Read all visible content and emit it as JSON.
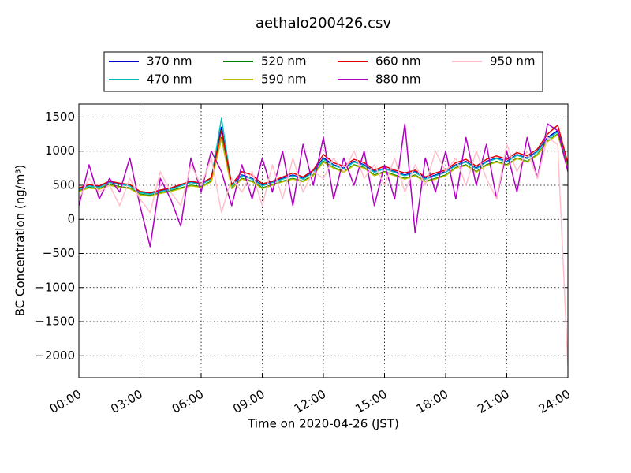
{
  "chart_data": {
    "type": "line",
    "title": "aethalo200426.csv",
    "xlabel": "Time on 2020-04-26 (JST)",
    "ylabel": "BC Concentration (ng/m³)",
    "x": [
      0,
      0.5,
      1,
      1.5,
      2,
      2.5,
      3,
      3.5,
      4,
      4.5,
      5,
      5.5,
      6,
      6.5,
      7,
      7.5,
      8,
      8.5,
      9,
      9.5,
      10,
      10.5,
      11,
      11.5,
      12,
      12.5,
      13,
      13.5,
      14,
      14.5,
      15,
      15.5,
      16,
      16.5,
      17,
      17.5,
      18,
      18.5,
      19,
      19.5,
      20,
      20.5,
      21,
      21.5,
      22,
      22.5,
      23,
      23.5,
      24
    ],
    "series": [
      {
        "name": "370 nm",
        "color": "#0000cc",
        "values": [
          450,
          500,
          480,
          550,
          520,
          500,
          400,
          380,
          420,
          450,
          500,
          550,
          520,
          600,
          1350,
          500,
          650,
          600,
          500,
          550,
          600,
          650,
          600,
          700,
          900,
          800,
          750,
          850,
          800,
          700,
          750,
          700,
          650,
          700,
          600,
          650,
          700,
          800,
          850,
          750,
          850,
          900,
          850,
          950,
          900,
          1000,
          1200,
          1300,
          800
        ]
      },
      {
        "name": "470 nm",
        "color": "#00bfbf",
        "values": [
          440,
          490,
          470,
          540,
          510,
          490,
          390,
          370,
          410,
          440,
          490,
          540,
          510,
          590,
          1480,
          490,
          640,
          590,
          490,
          540,
          590,
          640,
          590,
          690,
          880,
          790,
          740,
          840,
          790,
          690,
          740,
          690,
          640,
          690,
          590,
          640,
          690,
          790,
          840,
          740,
          840,
          890,
          840,
          940,
          890,
          990,
          1180,
          1280,
          790
        ]
      },
      {
        "name": "520 nm",
        "color": "#008000",
        "values": [
          420,
          470,
          450,
          510,
          480,
          460,
          370,
          350,
          390,
          420,
          460,
          500,
          480,
          560,
          1200,
          460,
          600,
          560,
          460,
          510,
          560,
          600,
          560,
          650,
          850,
          760,
          700,
          800,
          760,
          650,
          700,
          650,
          600,
          650,
          560,
          600,
          650,
          760,
          800,
          700,
          800,
          850,
          800,
          900,
          850,
          950,
          1150,
          1250,
          750
        ]
      },
      {
        "name": "590 nm",
        "color": "#bfbf00",
        "values": [
          410,
          460,
          440,
          500,
          470,
          450,
          360,
          340,
          380,
          410,
          450,
          490,
          470,
          550,
          1180,
          450,
          590,
          550,
          450,
          500,
          550,
          590,
          550,
          640,
          840,
          750,
          690,
          790,
          750,
          640,
          690,
          640,
          590,
          640,
          550,
          590,
          640,
          750,
          790,
          690,
          790,
          840,
          790,
          890,
          840,
          940,
          1140,
          1240,
          740
        ]
      },
      {
        "name": "660 nm",
        "color": "#e00000",
        "values": [
          460,
          510,
          490,
          560,
          530,
          510,
          410,
          390,
          430,
          460,
          510,
          560,
          530,
          610,
          1300,
          510,
          700,
          650,
          520,
          560,
          620,
          680,
          620,
          720,
          950,
          830,
          780,
          880,
          830,
          720,
          780,
          720,
          680,
          720,
          620,
          680,
          720,
          830,
          880,
          780,
          880,
          930,
          880,
          980,
          930,
          1030,
          1250,
          1380,
          820
        ]
      },
      {
        "name": "880 nm",
        "color": "#b000c0",
        "values": [
          200,
          800,
          300,
          600,
          400,
          900,
          200,
          -400,
          600,
          300,
          -100,
          900,
          400,
          1000,
          700,
          200,
          800,
          300,
          900,
          400,
          1000,
          200,
          1100,
          500,
          1200,
          300,
          900,
          500,
          1000,
          200,
          800,
          300,
          1400,
          -200,
          900,
          400,
          1000,
          300,
          1200,
          500,
          1100,
          300,
          1000,
          400,
          1200,
          600,
          1400,
          1300,
          700
        ]
      },
      {
        "name": "950 nm",
        "color": "#ffc0cb",
        "values": [
          300,
          600,
          400,
          500,
          200,
          600,
          300,
          100,
          700,
          400,
          200,
          800,
          500,
          900,
          100,
          600,
          400,
          700,
          200,
          800,
          300,
          900,
          400,
          700,
          600,
          900,
          700,
          1000,
          600,
          800,
          500,
          900,
          400,
          800,
          500,
          1000,
          700,
          900,
          500,
          1000,
          600,
          300,
          1100,
          700,
          1000,
          600,
          1200,
          1100,
          -2150
        ]
      }
    ],
    "xlim": [
      0,
      24
    ],
    "xticks": [
      {
        "value": 0,
        "label": "00:00"
      },
      {
        "value": 3,
        "label": "03:00"
      },
      {
        "value": 6,
        "label": "06:00"
      },
      {
        "value": 9,
        "label": "09:00"
      },
      {
        "value": 12,
        "label": "12:00"
      },
      {
        "value": 15,
        "label": "15:00"
      },
      {
        "value": 18,
        "label": "18:00"
      },
      {
        "value": 21,
        "label": "21:00"
      },
      {
        "value": 24,
        "label": "24:00"
      }
    ],
    "ylim": [
      -2320,
      1690
    ],
    "yticks": [
      {
        "value": -2000,
        "label": "−2000"
      },
      {
        "value": -1500,
        "label": "−1500"
      },
      {
        "value": -1000,
        "label": "−1000"
      },
      {
        "value": -500,
        "label": "−500"
      },
      0,
      500,
      1000,
      1500
    ],
    "grid": true,
    "legend": "top"
  }
}
